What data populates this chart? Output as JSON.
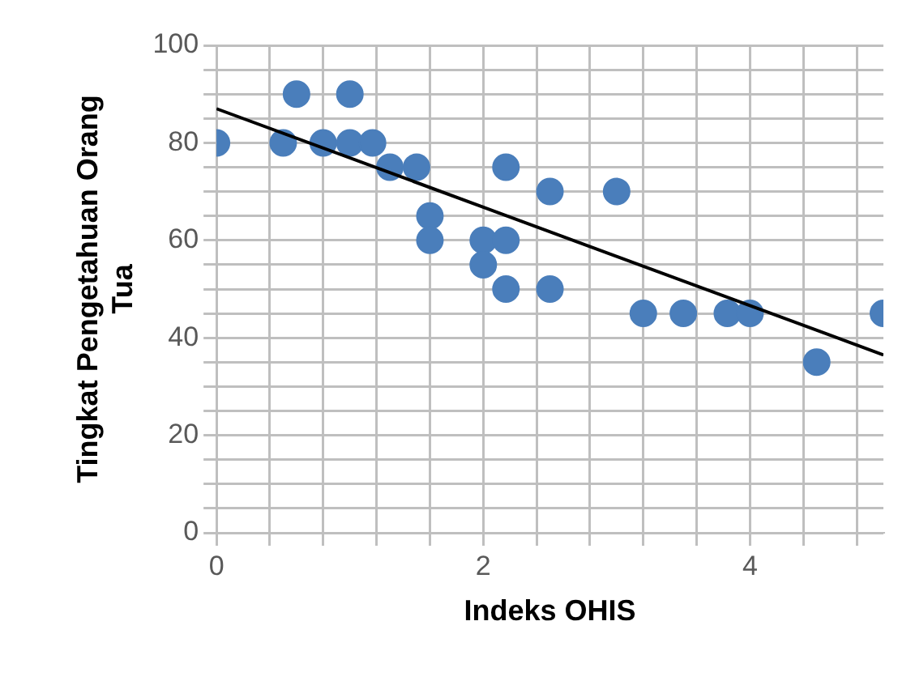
{
  "chart_data": {
    "type": "scatter",
    "xlabel": "Indeks OHIS",
    "ylabel": "Tingkat Pengetahuan Orang Tua",
    "xlim": [
      0,
      5
    ],
    "ylim": [
      0,
      100
    ],
    "xticks": [
      0,
      {
        "value": 0.4,
        "label": null
      },
      {
        "value": 0.8,
        "label": null
      },
      {
        "value": 1.2,
        "label": null
      },
      {
        "value": 1.6,
        "label": null
      },
      2,
      {
        "value": 2.4,
        "label": null
      },
      {
        "value": 2.8,
        "label": null
      },
      {
        "value": 3.2,
        "label": null
      },
      {
        "value": 3.6,
        "label": null
      },
      4,
      {
        "value": 4.4,
        "label": null
      },
      {
        "value": 4.8,
        "label": null
      }
    ],
    "yticks": [
      0,
      {
        "value": 5,
        "label": null
      },
      {
        "value": 10,
        "label": null
      },
      {
        "value": 15,
        "label": null
      },
      20,
      {
        "value": 25,
        "label": null
      },
      {
        "value": 30,
        "label": null
      },
      {
        "value": 35,
        "label": null
      },
      40,
      {
        "value": 45,
        "label": null
      },
      {
        "value": 50,
        "label": null
      },
      {
        "value": 55,
        "label": null
      },
      60,
      {
        "value": 65,
        "label": null
      },
      {
        "value": 70,
        "label": null
      },
      {
        "value": 75,
        "label": null
      },
      80,
      {
        "value": 85,
        "label": null
      },
      {
        "value": 90,
        "label": null
      },
      {
        "value": 95,
        "label": null
      },
      100
    ],
    "grid": true,
    "legend": false,
    "marker": "circle",
    "series": [
      {
        "color": "#4a7ebb",
        "x": [
          0,
          0.5,
          0.6,
          0.8,
          1,
          1,
          1.17,
          1.3,
          1.5,
          1.6,
          1.6,
          2,
          2,
          2.17,
          2.17,
          2.17,
          2.5,
          2.5,
          3,
          3.2,
          3.5,
          3.83,
          4,
          4.5,
          5
        ],
        "values": [
          80,
          80,
          90,
          80,
          90,
          80,
          80,
          75,
          75,
          65,
          60,
          60,
          55,
          75,
          60,
          50,
          70,
          50,
          70,
          45,
          45,
          45,
          45,
          35,
          45
        ]
      },
      {
        "type": "line",
        "color": "#000000",
        "marker": "none",
        "line_style": "solid",
        "x": [
          0,
          5
        ],
        "values": [
          87,
          36.5
        ]
      }
    ]
  }
}
